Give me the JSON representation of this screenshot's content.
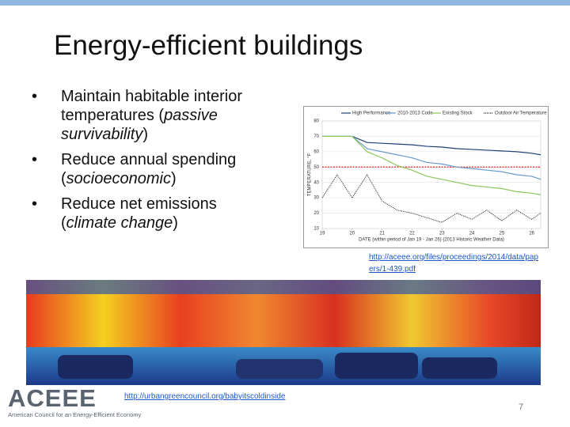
{
  "slide": {
    "title": "Energy-efficient buildings",
    "bullets": [
      {
        "text": "Maintain habitable interior temperatures (",
        "emphasis": "passive survivability",
        "end": ")"
      },
      {
        "text": "Reduce annual spending (",
        "emphasis": "socioeconomic",
        "end": ")"
      },
      {
        "text": "Reduce net emissions (",
        "emphasis": "climate change",
        "end": ")"
      }
    ],
    "chart_link": "http://aceee.org/files/proceedings/2014/data/papers/1-439.pdf",
    "photo_link": "http://urbangreencouncil.org/babyitscoldinside",
    "logo": "ACEEE",
    "logo_caption": "American Council for an Energy-Efficient Economy",
    "page_number": "7"
  },
  "chart_data": {
    "type": "line",
    "x_label": "DATE (within period of Jan 19 - Jan 26) (2013 Historic Weather Data)",
    "y_label": "TEMPERATURE, °F",
    "x": [
      19,
      19.5,
      20,
      20.5,
      21,
      21.5,
      22,
      22.5,
      23,
      23.5,
      24,
      24.5,
      25,
      25.5,
      26,
      26.3
    ],
    "series": [
      {
        "name": "High Performance",
        "color": "#1f3f7a",
        "values": [
          70,
          70,
          70,
          66,
          65.5,
          65,
          64.5,
          63.5,
          63,
          62,
          61.5,
          61,
          60.5,
          60,
          59,
          58
        ]
      },
      {
        "name": "2010-2013 Code",
        "color": "#6a9ad0",
        "values": [
          70,
          70,
          70,
          62,
          60,
          58,
          56,
          53,
          52,
          50,
          49,
          48,
          47,
          45,
          44,
          42
        ]
      },
      {
        "name": "Existing Stock",
        "color": "#8cc65a",
        "values": [
          70,
          70,
          70,
          60,
          56,
          51,
          48,
          44,
          42,
          40,
          38,
          37,
          36,
          34,
          33,
          32
        ]
      },
      {
        "name": "Outdoor Air Temperature",
        "color": "#222222",
        "dashed": true,
        "values": [
          30,
          45,
          30,
          45,
          28,
          22,
          20,
          17,
          14,
          20,
          16,
          22,
          15,
          22,
          16,
          20
        ]
      }
    ],
    "reference_line": {
      "value": 50,
      "color": "#e02020"
    },
    "xlim": [
      19,
      26.3
    ],
    "xticks": [
      19,
      20,
      21,
      22,
      23,
      24,
      25,
      26
    ],
    "ylim": [
      10,
      80
    ],
    "yticks": [
      10,
      20,
      30,
      40,
      50,
      60,
      70,
      80
    ],
    "grid": true,
    "legend": "top"
  }
}
